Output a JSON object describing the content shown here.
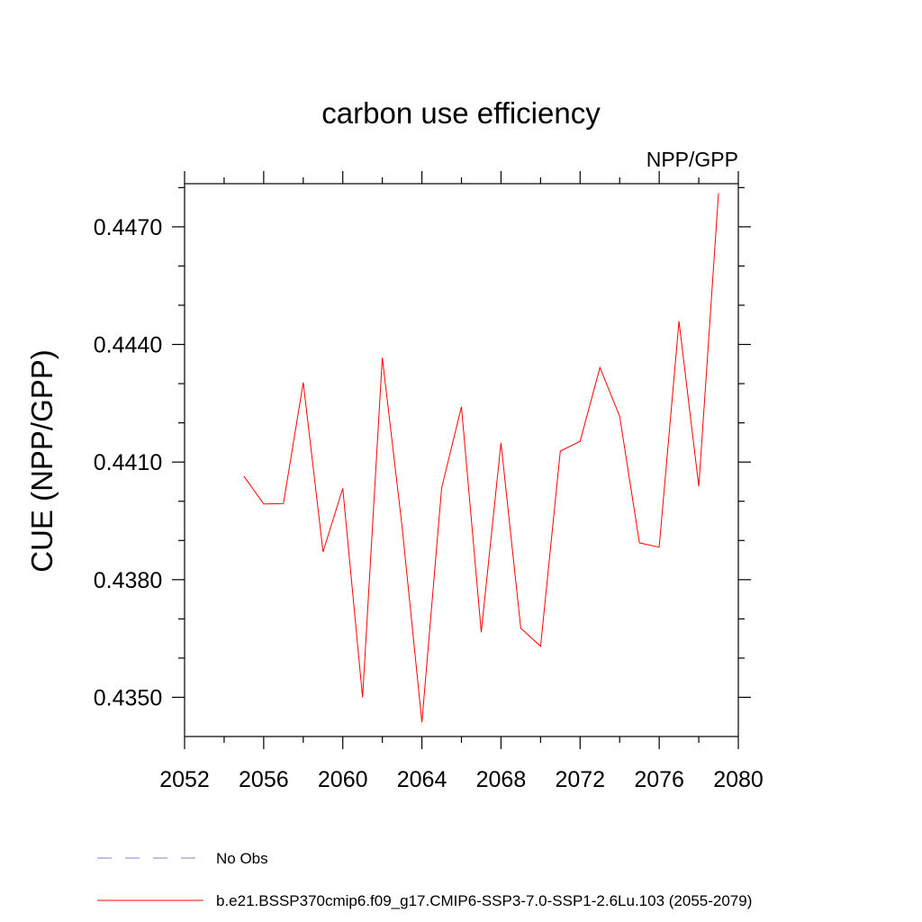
{
  "chart_data": {
    "type": "line",
    "title": "carbon use efficiency",
    "subtitle": "NPP/GPP",
    "ylabel": "CUE  (NPP/GPP)",
    "xlabel": "",
    "xlim": [
      2052,
      2080
    ],
    "ylim": [
      0.434,
      0.4481
    ],
    "x_ticks": [
      2052,
      2056,
      2060,
      2064,
      2068,
      2072,
      2076,
      2080
    ],
    "y_ticks": [
      0.435,
      0.438,
      0.441,
      0.444,
      0.447
    ],
    "y_tick_labels": [
      "0.4350",
      "0.4380",
      "0.4410",
      "0.4440",
      "0.4470"
    ],
    "x_minor_step": 2,
    "y_minor_step": 0.001,
    "grid": false,
    "legend_position": "bottom",
    "series": [
      {
        "name": "b.e21.BSSP370cmip6.f09_g17.CMIP6-SSP3-7.0-SSP1-2.6Lu.103 (2055-2079)",
        "color": "#ff0000",
        "dash": "solid",
        "x": [
          2055,
          2056,
          2057,
          2058,
          2059,
          2060,
          2061,
          2062,
          2063,
          2064,
          2065,
          2066,
          2067,
          2068,
          2069,
          2070,
          2071,
          2072,
          2073,
          2074,
          2075,
          2076,
          2077,
          2078,
          2079
        ],
        "values": [
          0.44064,
          0.43993,
          0.43994,
          0.44303,
          0.43871,
          0.44033,
          0.435,
          0.44366,
          0.43935,
          0.43436,
          0.44034,
          0.44241,
          0.43666,
          0.44149,
          0.43676,
          0.4363,
          0.44128,
          0.44153,
          0.44341,
          0.44217,
          0.43894,
          0.43883,
          0.44459,
          0.44038,
          0.44786
        ]
      }
    ],
    "legend": [
      {
        "label": "No Obs",
        "color": "#8080c0",
        "dash": "dashed"
      },
      {
        "label": "b.e21.BSSP370cmip6.f09_g17.CMIP6-SSP3-7.0-SSP1-2.6Lu.103 (2055-2079)",
        "color": "#ff0000",
        "dash": "solid"
      }
    ]
  }
}
